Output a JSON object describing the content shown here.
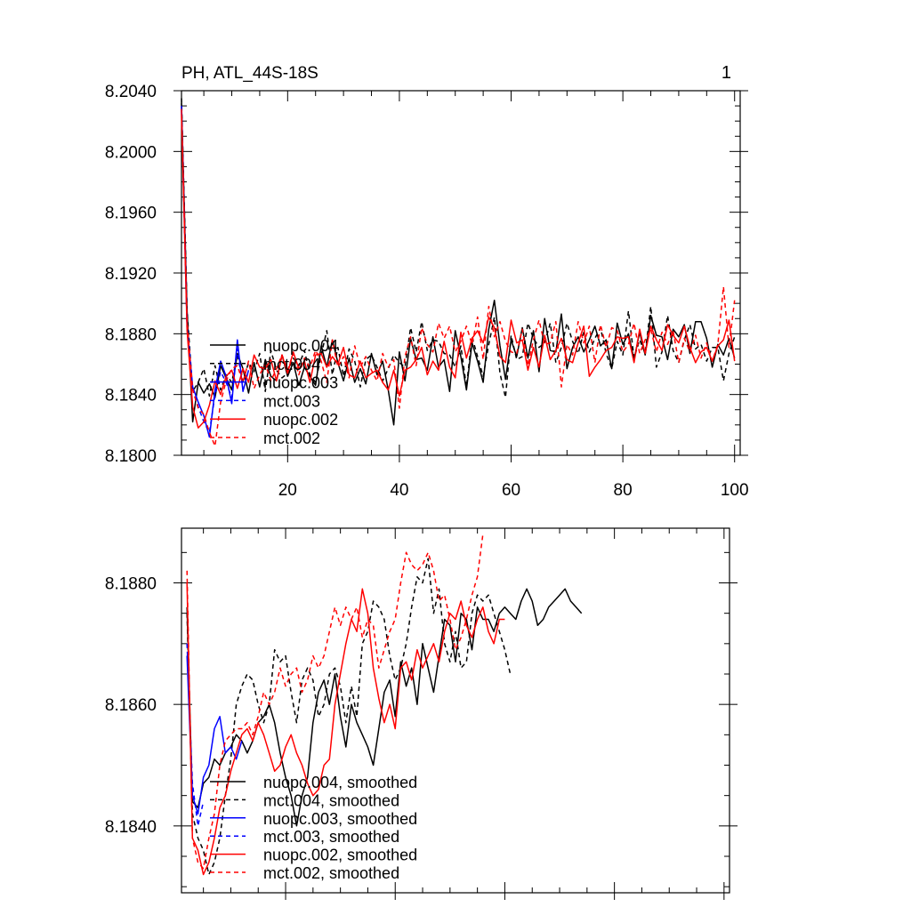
{
  "page": {
    "panel_number": "1"
  },
  "chart_data": [
    {
      "type": "line",
      "title": "PH, ATL_44S-18S",
      "xlabel": "",
      "ylabel": "",
      "xlim": [
        1,
        101
      ],
      "ylim": [
        8.18,
        8.204
      ],
      "xticks": [
        20,
        40,
        60,
        80,
        100
      ],
      "xtick_labels": [
        "20",
        "40",
        "60",
        "80",
        "100"
      ],
      "yticks": [
        8.18,
        8.184,
        8.188,
        8.192,
        8.196,
        8.2,
        8.204
      ],
      "ytick_labels": [
        "8.1800",
        "8.1840",
        "8.1880",
        "8.1920",
        "8.1960",
        "8.2000",
        "8.2040"
      ],
      "legend_position": "lower-left",
      "series": [
        {
          "name": "nuopc.004",
          "color": "#000000",
          "dash": "solid",
          "x_start": 1,
          "values": [
            8.2032,
            8.1895,
            8.1822,
            8.1848,
            8.1841,
            8.1847,
            8.1838,
            8.1859,
            8.1851,
            8.1843,
            8.1867,
            8.1857,
            8.1841,
            8.1861,
            8.1845,
            8.1863,
            8.1852,
            8.1849,
            8.1866,
            8.1852,
            8.1861,
            8.1846,
            8.1858,
            8.1852,
            8.1846,
            8.1872,
            8.1858,
            8.1876,
            8.1861,
            8.1849,
            8.1864,
            8.1848,
            8.1857,
            8.1847,
            8.1867,
            8.1853,
            8.1862,
            8.1843,
            8.182,
            8.1868,
            8.1849,
            8.1877,
            8.1863,
            8.1864,
            8.1856,
            8.1878,
            8.1858,
            8.1863,
            8.1842,
            8.1882,
            8.1865,
            8.1843,
            8.1874,
            8.1862,
            8.1848,
            8.1883,
            8.1902,
            8.1872,
            8.185,
            8.1876,
            8.1865,
            8.1884,
            8.1864,
            8.1882,
            8.1855,
            8.189,
            8.1869,
            8.1868,
            8.1893,
            8.1857,
            8.1871,
            8.1878,
            8.1868,
            8.1876,
            8.1885,
            8.1872,
            8.1876,
            8.1857,
            8.1887,
            8.1873,
            8.188,
            8.1863,
            8.1881,
            8.1866,
            8.1892,
            8.1879,
            8.1878,
            8.1863,
            8.1883,
            8.1878,
            8.1886,
            8.1867,
            8.1888,
            8.1888,
            8.1877,
            8.1858,
            8.1873,
            8.1866,
            8.1877,
            8.1864
          ]
        },
        {
          "name": "mct.004",
          "color": "#000000",
          "dash": "dashed",
          "x_start": 1,
          "values": [
            8.2035,
            8.1895,
            8.1842,
            8.1848,
            8.1857,
            8.1839,
            8.1859,
            8.1843,
            8.1853,
            8.1848,
            8.1866,
            8.1849,
            8.1861,
            8.1855,
            8.1867,
            8.1842,
            8.1869,
            8.1856,
            8.1851,
            8.1854,
            8.1864,
            8.1859,
            8.1869,
            8.1853,
            8.1848,
            8.1866,
            8.1882,
            8.1853,
            8.1871,
            8.1852,
            8.187,
            8.1862,
            8.1845,
            8.1863,
            8.1866,
            8.1858,
            8.1849,
            8.1857,
            8.1866,
            8.1861,
            8.1858,
            8.1884,
            8.1868,
            8.1888,
            8.1869,
            8.1876,
            8.1875,
            8.1867,
            8.1866,
            8.1858,
            8.1872,
            8.1845,
            8.1878,
            8.1865,
            8.1852,
            8.1873,
            8.1891,
            8.1854,
            8.1838,
            8.1879,
            8.1863,
            8.1865,
            8.1887,
            8.1877,
            8.1871,
            8.1874,
            8.1887,
            8.1861,
            8.1871,
            8.1887,
            8.1875,
            8.1867,
            8.1881,
            8.1868,
            8.1877,
            8.1884,
            8.1867,
            8.1857,
            8.1875,
            8.1866,
            8.1895,
            8.1864,
            8.1876,
            8.1867,
            8.1898,
            8.1858,
            8.1868,
            8.1892,
            8.1869,
            8.1861,
            8.1876,
            8.1886,
            8.187,
            8.1873,
            8.1862,
            8.1871,
            8.1871,
            8.1849,
            8.1867,
            8.1878
          ]
        },
        {
          "name": "nuopc.003",
          "color": "#0000ff",
          "dash": "solid",
          "x_start": 1,
          "values": [
            8.203,
            8.1885,
            8.1845,
            8.1835,
            8.1826,
            8.1812,
            8.1843,
            8.1862,
            8.1852,
            8.1834,
            8.1876,
            8.1842,
            8.1856
          ]
        },
        {
          "name": "mct.003",
          "color": "#0000ff",
          "dash": "dashed",
          "x_start": 1,
          "values": [
            8.2028,
            8.1882,
            8.1843,
            8.1832,
            8.1822,
            8.1815,
            8.184,
            8.1855,
            8.1848,
            8.1838,
            8.187,
            8.1845
          ]
        },
        {
          "name": "nuopc.002",
          "color": "#ff0000",
          "dash": "solid",
          "x_start": 1,
          "values": [
            8.2025,
            8.1882,
            8.1832,
            8.1818,
            8.1822,
            8.1833,
            8.1849,
            8.184,
            8.1852,
            8.1856,
            8.1844,
            8.1857,
            8.1848,
            8.1866,
            8.1858,
            8.1857,
            8.1863,
            8.1849,
            8.1866,
            8.1854,
            8.1868,
            8.1857,
            8.1862,
            8.1848,
            8.1866,
            8.1867,
            8.1858,
            8.1865,
            8.186,
            8.1871,
            8.1853,
            8.1851,
            8.1862,
            8.1851,
            8.1854,
            8.1856,
            8.1848,
            8.1843,
            8.1856,
            8.1839,
            8.1856,
            8.1858,
            8.1863,
            8.1871,
            8.1853,
            8.1862,
            8.1856,
            8.1875,
            8.1858,
            8.1851,
            8.1881,
            8.1864,
            8.1877,
            8.1882,
            8.1874,
            8.1891,
            8.1884,
            8.1865,
            8.1861,
            8.1889,
            8.1874,
            8.1876,
            8.1856,
            8.1871,
            8.1858,
            8.1879,
            8.1863,
            8.1869,
            8.1877,
            8.1863,
            8.1861,
            8.1874,
            8.1885,
            8.1852,
            8.1858,
            8.1863,
            8.1869,
            8.1871,
            8.1878,
            8.1877,
            8.1878,
            8.1861,
            8.1883,
            8.1867,
            8.1885,
            8.1876,
            8.1869,
            8.1886,
            8.1879,
            8.1874,
            8.1885,
            8.1871,
            8.1861,
            8.1868,
            8.1871,
            8.1862,
            8.1872,
            8.1876,
            8.1889,
            8.1862
          ]
        },
        {
          "name": "mct.002",
          "color": "#ff0000",
          "dash": "dashed",
          "x_start": 1,
          "values": [
            8.2028,
            8.1888,
            8.1843,
            8.1831,
            8.1827,
            8.1815,
            8.1806,
            8.1835,
            8.1849,
            8.1857,
            8.1859,
            8.1848,
            8.1862,
            8.1844,
            8.1853,
            8.186,
            8.1849,
            8.1857,
            8.1866,
            8.1856,
            8.1867,
            8.1853,
            8.1864,
            8.1858,
            8.1869,
            8.1862,
            8.1848,
            8.1876,
            8.1858,
            8.1865,
            8.1851,
            8.1872,
            8.1858,
            8.1865,
            8.1856,
            8.1849,
            8.1867,
            8.1858,
            8.1863,
            8.1831,
            8.1865,
            8.1878,
            8.1859,
            8.1884,
            8.1873,
            8.1868,
            8.1887,
            8.1877,
            8.1885,
            8.1868,
            8.1875,
            8.1885,
            8.1873,
            8.1891,
            8.1863,
            8.1898,
            8.1878,
            8.1888,
            8.1875,
            8.1868,
            8.1867,
            8.1883,
            8.1859,
            8.1876,
            8.1889,
            8.1873,
            8.1874,
            8.1888,
            8.1845,
            8.1873,
            8.1866,
            8.1888,
            8.1874,
            8.1885,
            8.1861,
            8.1886,
            8.1871,
            8.1884,
            8.1882,
            8.1868,
            8.1873,
            8.1887,
            8.1867,
            8.1876,
            8.1883,
            8.1868,
            8.1881,
            8.1873,
            8.1882,
            8.1861,
            8.1877,
            8.1868,
            8.1879,
            8.1864,
            8.1874,
            8.1862,
            8.1873,
            8.1911,
            8.1871,
            8.1902
          ]
        }
      ]
    },
    {
      "type": "line",
      "title": "",
      "xlabel": "",
      "ylabel": "",
      "xlim": [
        1,
        101
      ],
      "ylim": [
        8.1829,
        8.1889
      ],
      "xticks": [
        20,
        40,
        60,
        80,
        100
      ],
      "xtick_labels": [],
      "yticks": [
        8.184,
        8.186,
        8.188
      ],
      "ytick_labels": [
        "8.1840",
        "8.1860",
        "8.1880"
      ],
      "legend_position": "lower-left",
      "series": [
        {
          "name": "nuopc.004, smoothed",
          "color": "#000000",
          "dash": "solid",
          "x_start": 2,
          "values": [
            8.1876,
            8.1844,
            8.1843,
            8.1847,
            8.1848,
            8.1851,
            8.185,
            8.1852,
            8.1853,
            8.1855,
            8.1854,
            8.1852,
            8.1854,
            8.1857,
            8.1858,
            8.186,
            8.1857,
            8.1852,
            8.1848,
            8.1845,
            8.184,
            8.1845,
            8.1848,
            8.1857,
            8.1862,
            8.1864,
            8.186,
            8.1865,
            8.1858,
            8.1853,
            8.186,
            8.1857,
            8.1855,
            8.1853,
            8.185,
            8.1856,
            8.1862,
            8.1864,
            8.1858,
            8.1867,
            8.1863,
            8.1866,
            8.186,
            8.187,
            8.1866,
            8.1862,
            8.1868,
            8.1874,
            8.1873,
            8.1867,
            8.1875,
            8.1874,
            8.1869,
            8.1876,
            8.1874,
            8.1874,
            8.1872,
            8.1875,
            8.1876,
            8.1875,
            8.1874,
            8.1877,
            8.1879,
            8.1877,
            8.1873,
            8.1874,
            8.1876,
            8.1877,
            8.1878,
            8.1879,
            8.1877,
            8.1876,
            8.1875
          ]
        },
        {
          "name": "mct.004, smoothed",
          "color": "#000000",
          "dash": "dashed",
          "x_start": 2,
          "values": [
            8.1875,
            8.1842,
            8.1838,
            8.1836,
            8.1832,
            8.1834,
            8.1838,
            8.1845,
            8.1851,
            8.186,
            8.1863,
            8.1865,
            8.1864,
            8.186,
            8.1857,
            8.186,
            8.1869,
            8.1867,
            8.1868,
            8.1862,
            8.1857,
            8.1864,
            8.1866,
            8.1864,
            8.1858,
            8.186,
            8.1865,
            8.1866,
            8.1863,
            8.1857,
            8.1863,
            8.1858,
            8.187,
            8.1872,
            8.1877,
            8.1876,
            8.1874,
            8.1868,
            8.1864,
            8.1866,
            8.187,
            8.1876,
            8.1881,
            8.188,
            8.1884,
            8.1875,
            8.1879,
            8.187,
            8.1867,
            8.1872,
            8.1866,
            8.1867,
            8.1875,
            8.1878,
            8.1877,
            8.1878,
            8.1875,
            8.1872,
            8.1869,
            8.1865
          ]
        },
        {
          "name": "nuopc.003, smoothed",
          "color": "#0000ff",
          "dash": "solid",
          "x_start": 2,
          "values": [
            8.1868,
            8.1845,
            8.1842,
            8.1848,
            8.185,
            8.1856,
            8.1858,
            8.1852,
            8.1853,
            8.1851,
            8.1854
          ]
        },
        {
          "name": "mct.003, smoothed",
          "color": "#0000ff",
          "dash": "dashed",
          "x_start": 2,
          "values": [
            8.187,
            8.1847,
            8.184,
            8.1844
          ]
        },
        {
          "name": "nuopc.002, smoothed",
          "color": "#ff0000",
          "dash": "solid",
          "x_start": 2,
          "values": [
            8.188,
            8.1838,
            8.1836,
            8.1832,
            8.1834,
            8.1838,
            8.1843,
            8.1845,
            8.1849,
            8.1852,
            8.1855,
            8.1856,
            8.1854,
            8.1857,
            8.1855,
            8.1852,
            8.1849,
            8.185,
            8.1853,
            8.1855,
            8.1852,
            8.185,
            8.1847,
            8.1845,
            8.1846,
            8.185,
            8.1851,
            8.186,
            8.1865,
            8.187,
            8.1874,
            8.1872,
            8.1879,
            8.1875,
            8.1866,
            8.1861,
            8.1857,
            8.186,
            8.1856,
            8.1866,
            8.1867,
            8.1864,
            8.1869,
            8.1866,
            8.1868,
            8.187,
            8.1867,
            8.1872,
            8.1875,
            8.1874,
            8.1877,
            8.1873,
            8.1871,
            8.1874,
            8.1876,
            8.1872,
            8.187,
            8.1874,
            8.1874
          ]
        },
        {
          "name": "mct.002, smoothed",
          "color": "#ff0000",
          "dash": "dashed",
          "x_start": 2,
          "values": [
            8.1882,
            8.1838,
            8.1834,
            8.1833,
            8.1838,
            8.1842,
            8.185,
            8.1854,
            8.1855,
            8.1856,
            8.1856,
            8.1857,
            8.1855,
            8.1858,
            8.1862,
            8.186,
            8.1862,
            8.1866,
            8.1863,
            8.1865,
            8.1866,
            8.1862,
            8.1864,
            8.1868,
            8.1866,
            8.1868,
            8.1872,
            8.1876,
            8.1873,
            8.1876,
            8.1874,
            8.1876,
            8.1871,
            8.1874,
            8.1873,
            8.1866,
            8.1869,
            8.1872,
            8.1874,
            8.188,
            8.1885,
            8.1883,
            8.1882,
            8.1883,
            8.1885,
            8.1882,
            8.1877,
            8.1878,
            8.1874,
            8.1869,
            8.1871,
            8.1874,
            8.1878,
            8.1881,
            8.1888
          ]
        }
      ]
    }
  ]
}
